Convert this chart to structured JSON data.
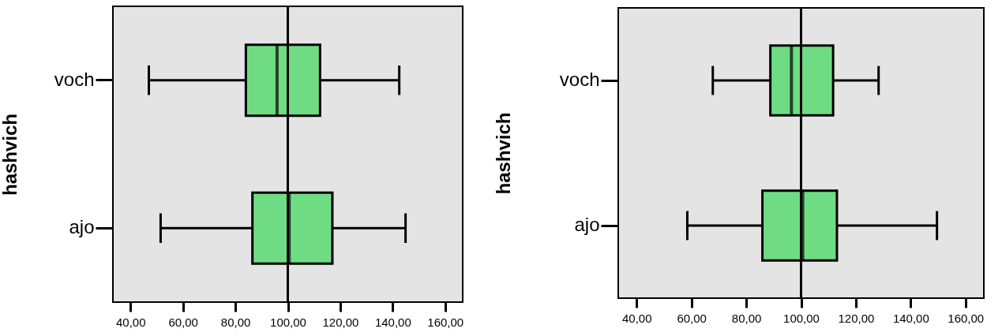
{
  "chart_data": [
    {
      "type": "box",
      "orientation": "horizontal",
      "ylabel": "hashvich",
      "categories": [
        "voch",
        "ajo"
      ],
      "color": "#6fdc84",
      "boxes": [
        {
          "low": 47,
          "q1": 84,
          "median": 95.9,
          "q3": 112.3,
          "high": 142.5
        },
        {
          "low": 51.5,
          "q1": 86.5,
          "median": 100.5,
          "q3": 117,
          "high": 144.9
        }
      ],
      "xlim": [
        33.3,
        166.7
      ],
      "xticks": [
        {
          "value": 40,
          "label": "40,00"
        },
        {
          "value": 60,
          "label": "60,00"
        },
        {
          "value": 80,
          "label": "80,00"
        },
        {
          "value": 100,
          "label": "100,00"
        },
        {
          "value": 120,
          "label": "120,00"
        },
        {
          "value": 140,
          "label": "140,00"
        },
        {
          "value": 160,
          "label": "160,00"
        }
      ],
      "ref_lines": [
        {
          "axis": "x",
          "value": 100
        }
      ]
    },
    {
      "type": "box",
      "orientation": "horizontal",
      "ylabel": "hashvich",
      "categories": [
        "voch",
        "ajo"
      ],
      "color": "#6fdc84",
      "boxes": [
        {
          "low": 67.8,
          "q1": 88.8,
          "median": 96.5,
          "q3": 111.7,
          "high": 128.3
        },
        {
          "low": 58.5,
          "q1": 85.9,
          "median": 100.6,
          "q3": 113.1,
          "high": 149.6
        }
      ],
      "xlim": [
        33.3,
        166.7
      ],
      "xticks": [
        {
          "value": 40,
          "label": "40,00"
        },
        {
          "value": 60,
          "label": "60,00"
        },
        {
          "value": 80,
          "label": "80,00"
        },
        {
          "value": 100,
          "label": "100,00"
        },
        {
          "value": 120,
          "label": "120,00"
        },
        {
          "value": 140,
          "label": "140,00"
        },
        {
          "value": 160,
          "label": "160,00"
        }
      ],
      "ref_lines": [
        {
          "axis": "x",
          "value": 100
        }
      ]
    }
  ]
}
